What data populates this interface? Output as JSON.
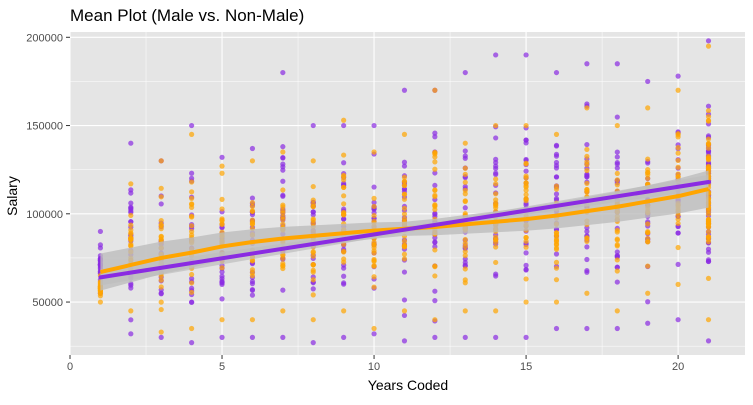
{
  "chart_data": {
    "type": "scatter",
    "title": "Mean Plot (Male vs. Non-Male)",
    "xlabel": "Years Coded",
    "ylabel": "Salary",
    "xlim": [
      0,
      22.2
    ],
    "ylim": [
      20000,
      203000
    ],
    "x_ticks": [
      0,
      5,
      10,
      15,
      20
    ],
    "x_tick_labels": [
      "0",
      "5",
      "10",
      "15",
      "20"
    ],
    "y_ticks": [
      50000,
      100000,
      150000,
      200000
    ],
    "y_tick_labels": [
      "50000",
      "100000",
      "150000",
      "200000"
    ],
    "grid": true,
    "legend": "none",
    "colors": {
      "panel_background": "#e5e5e5",
      "grid_major": "#ffffff",
      "series_purple": "#8a2be2",
      "series_orange": "#ffa500",
      "confidence_band": "#bdbdbd"
    },
    "series": [
      {
        "color": "#8a2be2",
        "points_summary": [
          {
            "x": 1,
            "ymin": 55000,
            "ymax": 90000
          },
          {
            "x": 2,
            "ymin": 32000,
            "ymax": 140000
          },
          {
            "x": 3,
            "ymin": 30000,
            "ymax": 130000
          },
          {
            "x": 4,
            "ymin": 27000,
            "ymax": 150000
          },
          {
            "x": 5,
            "ymin": 30000,
            "ymax": 132000
          },
          {
            "x": 6,
            "ymin": 30000,
            "ymax": 137000
          },
          {
            "x": 7,
            "ymin": 30000,
            "ymax": 180000
          },
          {
            "x": 8,
            "ymin": 27000,
            "ymax": 150000
          },
          {
            "x": 9,
            "ymin": 30000,
            "ymax": 150000
          },
          {
            "x": 10,
            "ymin": 32000,
            "ymax": 150000
          },
          {
            "x": 11,
            "ymin": 28000,
            "ymax": 170000
          },
          {
            "x": 12,
            "ymin": 30000,
            "ymax": 170000
          },
          {
            "x": 13,
            "ymin": 30000,
            "ymax": 180000
          },
          {
            "x": 14,
            "ymin": 30000,
            "ymax": 190000
          },
          {
            "x": 15,
            "ymin": 30000,
            "ymax": 190000
          },
          {
            "x": 16,
            "ymin": 35000,
            "ymax": 180000
          },
          {
            "x": 17,
            "ymin": 35000,
            "ymax": 185000
          },
          {
            "x": 18,
            "ymin": 35000,
            "ymax": 185000
          },
          {
            "x": 19,
            "ymin": 38000,
            "ymax": 175000
          },
          {
            "x": 20,
            "ymin": 40000,
            "ymax": 178000
          },
          {
            "x": 21,
            "ymin": 28000,
            "ymax": 198000
          }
        ],
        "trend": {
          "type": "linear",
          "x": [
            1,
            21
          ],
          "y": [
            64000,
            118000
          ]
        }
      },
      {
        "color": "#ffa500",
        "points_summary": [
          {
            "x": 1,
            "ymin": 50000,
            "ymax": 65000
          },
          {
            "x": 2,
            "ymin": 45000,
            "ymax": 117000
          },
          {
            "x": 3,
            "ymin": 33000,
            "ymax": 130000
          },
          {
            "x": 4,
            "ymin": 35000,
            "ymax": 145000
          },
          {
            "x": 5,
            "ymin": 40000,
            "ymax": 127000
          },
          {
            "x": 6,
            "ymin": 40000,
            "ymax": 130000
          },
          {
            "x": 7,
            "ymin": 45000,
            "ymax": 135000
          },
          {
            "x": 8,
            "ymin": 40000,
            "ymax": 130000
          },
          {
            "x": 9,
            "ymin": 45000,
            "ymax": 153000
          },
          {
            "x": 10,
            "ymin": 35000,
            "ymax": 135000
          },
          {
            "x": 11,
            "ymin": 45000,
            "ymax": 145000
          },
          {
            "x": 12,
            "ymin": 40000,
            "ymax": 170000
          },
          {
            "x": 13,
            "ymin": 45000,
            "ymax": 140000
          },
          {
            "x": 14,
            "ymin": 45000,
            "ymax": 150000
          },
          {
            "x": 15,
            "ymin": 50000,
            "ymax": 150000
          },
          {
            "x": 16,
            "ymin": 50000,
            "ymax": 145000
          },
          {
            "x": 17,
            "ymin": 55000,
            "ymax": 160000
          },
          {
            "x": 18,
            "ymin": 45000,
            "ymax": 150000
          },
          {
            "x": 19,
            "ymin": 55000,
            "ymax": 160000
          },
          {
            "x": 20,
            "ymin": 60000,
            "ymax": 170000
          },
          {
            "x": 21,
            "ymin": 40000,
            "ymax": 195000
          }
        ],
        "trend": {
          "type": "loess",
          "x": [
            1,
            2,
            3,
            4,
            5,
            6,
            7,
            8,
            9,
            10,
            11,
            12,
            13,
            14,
            15,
            16,
            17,
            18,
            19,
            20,
            21
          ],
          "y": [
            67000,
            71000,
            75000,
            78000,
            81500,
            84000,
            86000,
            87500,
            89000,
            90500,
            91500,
            92500,
            94000,
            95500,
            97000,
            99000,
            101500,
            104000,
            107000,
            110000,
            114000
          ]
        }
      }
    ]
  }
}
